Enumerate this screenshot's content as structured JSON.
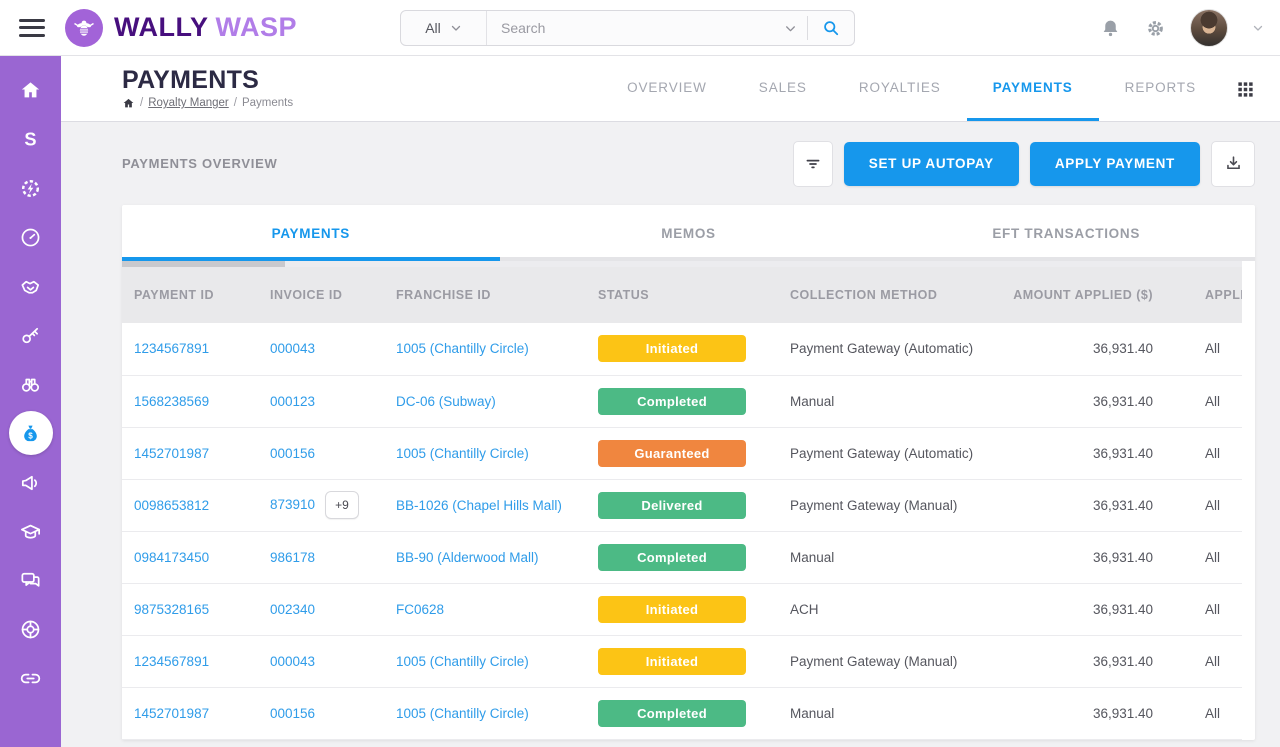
{
  "topbar": {
    "brand": {
      "word1": "WALLY",
      "word2": "WASP"
    },
    "search": {
      "scope_value": "All",
      "placeholder": "Search"
    }
  },
  "sidebar": {
    "items": [
      {
        "icon": "home-icon",
        "active": false
      },
      {
        "icon": "s-swoosh-icon",
        "active": false
      },
      {
        "icon": "gear-bolt-icon",
        "active": false
      },
      {
        "icon": "gauge-icon",
        "active": false
      },
      {
        "icon": "handshake-icon",
        "active": false
      },
      {
        "icon": "key-icon",
        "active": false
      },
      {
        "icon": "binoculars-icon",
        "active": false
      },
      {
        "icon": "money-bag-icon",
        "active": true
      },
      {
        "icon": "megaphone-icon",
        "active": false
      },
      {
        "icon": "graduation-cap-icon",
        "active": false
      },
      {
        "icon": "chat-icon",
        "active": false
      },
      {
        "icon": "life-ring-icon",
        "active": false
      },
      {
        "icon": "link-icon",
        "active": false
      }
    ]
  },
  "page": {
    "title": "PAYMENTS",
    "breadcrumb": {
      "link": "Royalty Manger",
      "current": "Payments",
      "separator": "/"
    },
    "nav_tabs": [
      {
        "label": "OVERVIEW",
        "active": false
      },
      {
        "label": "SALES",
        "active": false
      },
      {
        "label": "ROYALTIES",
        "active": false
      },
      {
        "label": "PAYMENTS",
        "active": true
      },
      {
        "label": "REPORTS",
        "active": false
      }
    ],
    "section_label": "PAYMENTS OVERVIEW",
    "buttons": {
      "autopay": "SET UP AUTOPAY",
      "apply": "APPLY PAYMENT"
    }
  },
  "card": {
    "tabs": [
      {
        "label": "PAYMENTS",
        "active": true
      },
      {
        "label": "MEMOS",
        "active": false
      },
      {
        "label": "EFT TRANSACTIONS",
        "active": false
      }
    ]
  },
  "table": {
    "columns": [
      "PAYMENT ID",
      "INVOICE ID",
      "FRANCHISE ID",
      "STATUS",
      "COLLECTION METHOD",
      "AMOUNT APPLIED ($)",
      "APPLI"
    ],
    "rows": [
      {
        "payment_id": "1234567891",
        "invoice_id": "000043",
        "invoice_more": null,
        "franchise": "1005 (Chantilly Circle)",
        "status": "Initiated",
        "status_color": "yellow",
        "method": "Payment Gateway (Automatic)",
        "amount": "36,931.40",
        "applied": "All"
      },
      {
        "payment_id": "1568238569",
        "invoice_id": "000123",
        "invoice_more": null,
        "franchise": "DC-06 (Subway)",
        "status": "Completed",
        "status_color": "green",
        "method": "Manual",
        "amount": "36,931.40",
        "applied": "All"
      },
      {
        "payment_id": "1452701987",
        "invoice_id": "000156",
        "invoice_more": null,
        "franchise": "1005 (Chantilly Circle)",
        "status": "Guaranteed",
        "status_color": "orange",
        "method": "Payment Gateway (Automatic)",
        "amount": "36,931.40",
        "applied": "All"
      },
      {
        "payment_id": "0098653812",
        "invoice_id": "873910",
        "invoice_more": "+9",
        "franchise": "BB-1026 (Chapel Hills Mall)",
        "status": "Delivered",
        "status_color": "green",
        "method": "Payment Gateway (Manual)",
        "amount": "36,931.40",
        "applied": "All"
      },
      {
        "payment_id": "0984173450",
        "invoice_id": "986178",
        "invoice_more": null,
        "franchise": "BB-90 (Alderwood Mall)",
        "status": "Completed",
        "status_color": "green",
        "method": "Manual",
        "amount": "36,931.40",
        "applied": "All"
      },
      {
        "payment_id": "9875328165",
        "invoice_id": "002340",
        "invoice_more": null,
        "franchise": "FC0628",
        "status": "Initiated",
        "status_color": "yellow",
        "method": "ACH",
        "amount": "36,931.40",
        "applied": "All"
      },
      {
        "payment_id": "1234567891",
        "invoice_id": "000043",
        "invoice_more": null,
        "franchise": "1005 (Chantilly Circle)",
        "status": "Initiated",
        "status_color": "yellow",
        "method": "Payment Gateway (Manual)",
        "amount": "36,931.40",
        "applied": "All"
      },
      {
        "payment_id": "1452701987",
        "invoice_id": "000156",
        "invoice_more": null,
        "franchise": "1005 (Chantilly Circle)",
        "status": "Completed",
        "status_color": "green",
        "method": "Manual",
        "amount": "36,931.40",
        "applied": "All"
      }
    ]
  },
  "colors": {
    "yellow": "#fcc415",
    "green": "#4cba85",
    "orange": "#f0863f",
    "accent_blue": "#1697ec",
    "sidebar_purple": "#9a66d2",
    "link_blue": "#2f9ce9"
  }
}
